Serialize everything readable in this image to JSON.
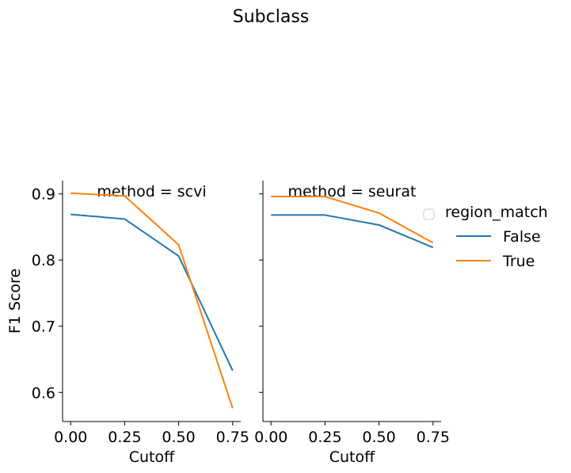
{
  "figure_title": "Subclass",
  "legend": {
    "title": "region_match",
    "entries": [
      {
        "label": "False",
        "color": "#1f77b4"
      },
      {
        "label": "True",
        "color": "#ff7f0e"
      }
    ]
  },
  "chart_data": [
    {
      "type": "line",
      "title": "method = scvi",
      "xlabel": "Cutoff",
      "ylabel": "F1 Score",
      "xlim": [
        -0.0375,
        0.7875
      ],
      "ylim": [
        0.556,
        0.92
      ],
      "xticks": [
        0.0,
        0.25,
        0.5,
        0.75
      ],
      "xtick_labels": [
        "0.00",
        "0.25",
        "0.50",
        "0.75"
      ],
      "yticks": [
        0.6,
        0.7,
        0.8,
        0.9
      ],
      "ytick_labels": [
        "0.6",
        "0.7",
        "0.8",
        "0.9"
      ],
      "x": [
        0.0,
        0.25,
        0.5,
        0.75
      ],
      "series": [
        {
          "name": "False",
          "color": "#1f77b4",
          "values": [
            0.869,
            0.862,
            0.806,
            0.633
          ]
        },
        {
          "name": "True",
          "color": "#ff7f0e",
          "values": [
            0.901,
            0.897,
            0.823,
            0.576
          ]
        }
      ]
    },
    {
      "type": "line",
      "title": "method = seurat",
      "xlabel": "Cutoff",
      "ylabel": "",
      "xlim": [
        -0.0375,
        0.7875
      ],
      "ylim": [
        0.556,
        0.92
      ],
      "xticks": [
        0.0,
        0.25,
        0.5,
        0.75
      ],
      "xtick_labels": [
        "0.00",
        "0.25",
        "0.50",
        "0.75"
      ],
      "yticks": [
        0.6,
        0.7,
        0.8,
        0.9
      ],
      "ytick_labels": [],
      "x": [
        0.0,
        0.25,
        0.5,
        0.75
      ],
      "series": [
        {
          "name": "False",
          "color": "#1f77b4",
          "values": [
            0.868,
            0.868,
            0.853,
            0.819
          ]
        },
        {
          "name": "True",
          "color": "#ff7f0e",
          "values": [
            0.896,
            0.896,
            0.871,
            0.826
          ]
        }
      ]
    }
  ]
}
